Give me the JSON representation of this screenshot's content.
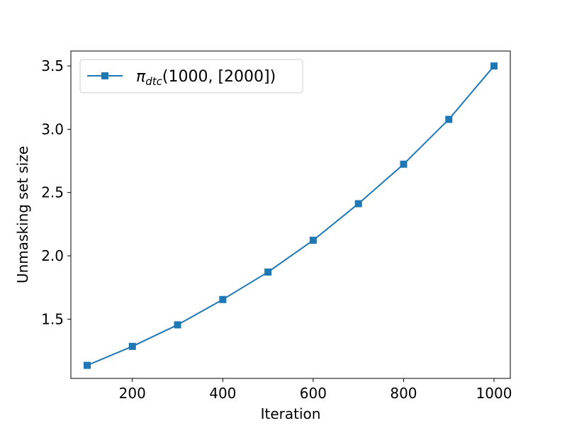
{
  "chart_data": {
    "type": "line",
    "title": "",
    "xlabel": "Iteration",
    "ylabel": "Unmasking set size",
    "xlim": [
      64,
      1036
    ],
    "ylim": [
      1.032,
      3.618
    ],
    "xticks": [
      200,
      400,
      600,
      800,
      1000
    ],
    "xtick_labels": [
      "200",
      "400",
      "600",
      "800",
      "1000"
    ],
    "yticks": [
      1.5,
      2.0,
      2.5,
      3.0,
      3.5
    ],
    "ytick_labels": [
      "1.5",
      "2.0",
      "2.5",
      "3.0",
      "3.5"
    ],
    "grid": false,
    "legend_position": "top-left",
    "series": [
      {
        "name": "π_dtc(1000, [2000])",
        "legend_symbol": "π",
        "legend_subscript": "dtc",
        "legend_rest": "(1000, [2000])",
        "color": "#1f77b4",
        "marker": "square",
        "x": [
          100,
          200,
          300,
          400,
          500,
          600,
          700,
          800,
          900,
          1000
        ],
        "y": [
          1.135,
          1.285,
          1.455,
          1.655,
          1.872,
          2.123,
          2.412,
          2.724,
          3.078,
          3.5
        ]
      }
    ]
  }
}
